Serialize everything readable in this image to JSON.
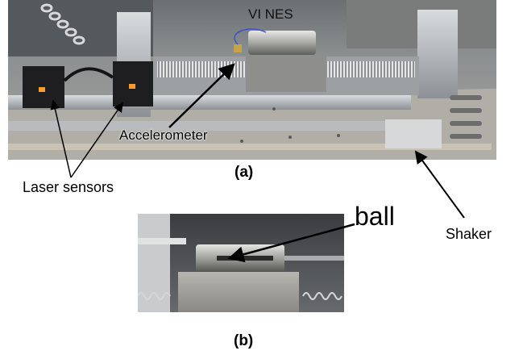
{
  "figure": {
    "photo_a": {
      "panel_label": "(a)",
      "annotations": {
        "vi_nes": "VI NES",
        "accelerometer": "Accelerometer",
        "laser_sensors": "Laser sensors",
        "shaker": "Shaker"
      }
    },
    "photo_b": {
      "panel_label": "(b)",
      "annotations": {
        "ball": "ball"
      }
    }
  }
}
